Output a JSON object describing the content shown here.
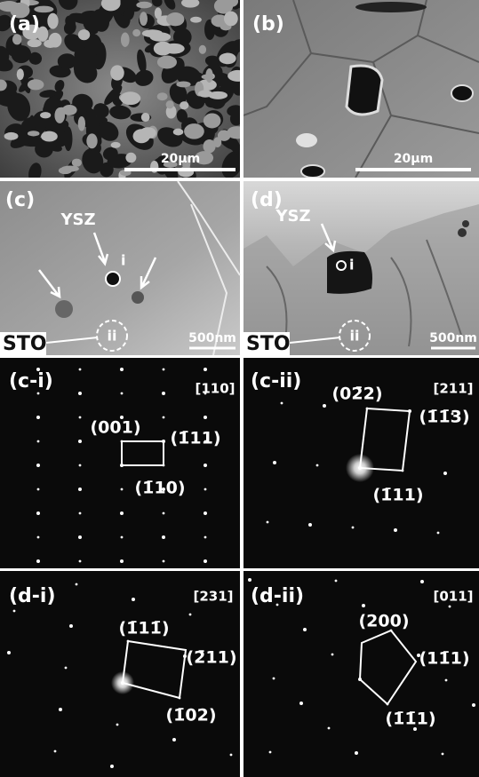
{
  "panels": [
    {
      "label": "(a)",
      "scale_bar": "20μm"
    },
    {
      "label": "(b)",
      "scale_bar": "20μm"
    },
    {
      "label": "(c)",
      "phase": "YSZ",
      "site_1": "i",
      "site_2": "ii",
      "substrate": "STO",
      "scale_bar": "500nm"
    },
    {
      "label": "(d)",
      "phase": "YSZ",
      "site_1": "i",
      "site_2": "ii",
      "substrate": "STO",
      "scale_bar": "500nm"
    },
    {
      "label": "(c-i)",
      "zone_axis": "[110]",
      "spots": [
        "(001)",
        "(1̄11)",
        "(1̄10)"
      ]
    },
    {
      "label": "(c-ii)",
      "zone_axis": "[211]",
      "spots": [
        "(02̄2)",
        "(1̄1̄3)",
        "(1̄11)"
      ]
    },
    {
      "label": "(d-i)",
      "zone_axis": "[231]",
      "spots": [
        "(1̄11̄)",
        "(2̄11)",
        "(1̄02)"
      ]
    },
    {
      "label": "(d-ii)",
      "zone_axis": "[011]",
      "spots": [
        "(200)",
        "(11̄1)",
        "(1̄1̄1)"
      ]
    }
  ]
}
